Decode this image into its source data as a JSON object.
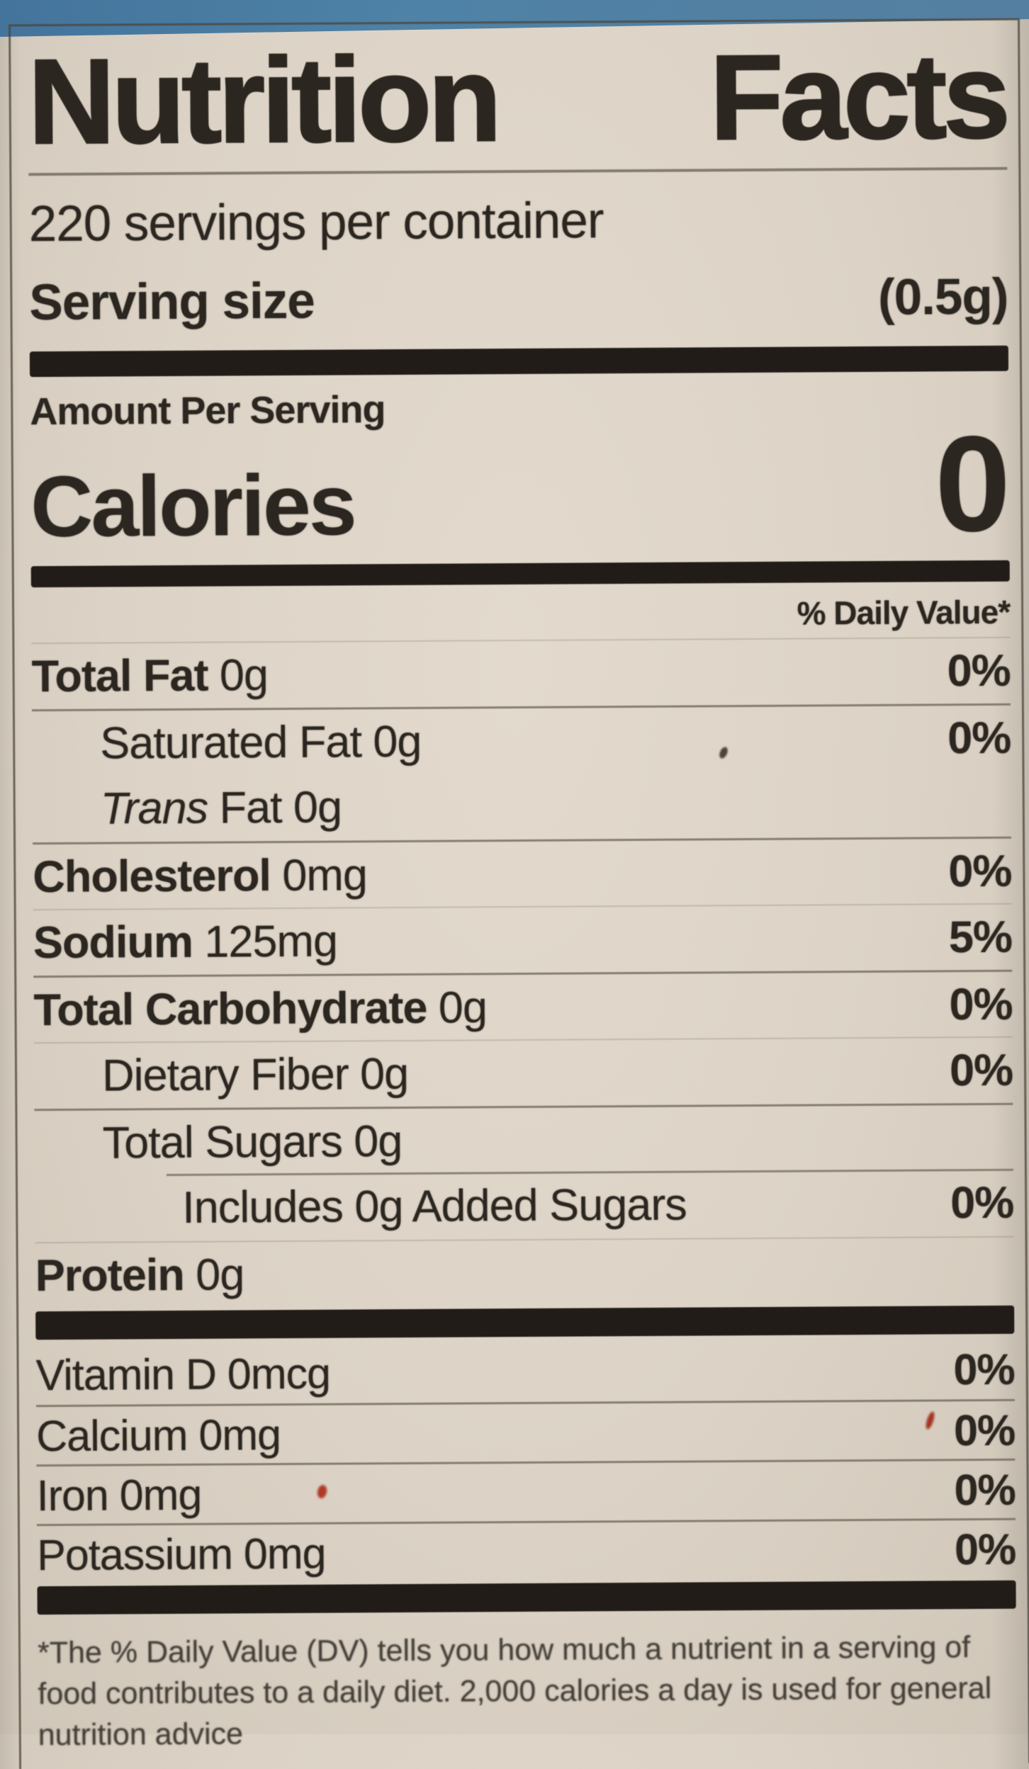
{
  "colors": {
    "background_cream": "#dcd3c6",
    "container_blue": "#4e82a6",
    "ink": "#2b2620",
    "bar": "#211c17",
    "hairline": "#776f62",
    "artifact_red": "#b03a26"
  },
  "label": {
    "title": "Nutrition Facts",
    "servings_per_container": "220 servings per container",
    "serving_size_label": "Serving size",
    "serving_size_value": "(0.5g)",
    "amount_per_serving": "Amount Per Serving",
    "calories_label": "Calories",
    "calories_value": "0",
    "daily_value_header": "% Daily Value*",
    "rows": [
      {
        "name": "Total Fat",
        "amount": "0g",
        "dv": "0%",
        "bold": true,
        "indent": 0,
        "divider": "faint"
      },
      {
        "name": "Saturated Fat",
        "amount": "0g",
        "dv": "0%",
        "bold": false,
        "indent": 1,
        "divider": "full"
      },
      {
        "italic": "Trans",
        "name": "Fat",
        "amount": "0g",
        "dv": "",
        "bold": false,
        "indent": 1,
        "divider": "none"
      },
      {
        "name": "Cholesterol",
        "amount": "0mg",
        "dv": "0%",
        "bold": true,
        "indent": 0,
        "divider": "full"
      },
      {
        "name": "Sodium",
        "amount": "125mg",
        "dv": "5%",
        "bold": true,
        "indent": 0,
        "divider": "faint"
      },
      {
        "name": "Total Carbohydrate",
        "amount": "0g",
        "dv": "0%",
        "bold": true,
        "indent": 0,
        "divider": "full"
      },
      {
        "name": "Dietary Fiber",
        "amount": "0g",
        "dv": "0%",
        "bold": false,
        "indent": 1,
        "divider": "faint"
      },
      {
        "name": "Total Sugars",
        "amount": "0g",
        "dv": "",
        "bold": false,
        "indent": 1,
        "divider": "full"
      },
      {
        "name": "Includes 0g Added Sugars",
        "amount": "",
        "dv": "0%",
        "bold": false,
        "indent": 2,
        "divider": "indent"
      },
      {
        "name": "Protein",
        "amount": "0g",
        "dv": "",
        "bold": true,
        "indent": 0,
        "divider": "faint"
      }
    ],
    "micronutrients": [
      {
        "name": "Vitamin D",
        "amount": "0mcg",
        "dv": "0%",
        "divider": "none"
      },
      {
        "name": "Calcium",
        "amount": "0mg",
        "dv": "0%",
        "divider": "full"
      },
      {
        "name": "Iron",
        "amount": "0mg",
        "dv": "0%",
        "divider": "full"
      },
      {
        "name": "Potassium",
        "amount": "0mg",
        "dv": "0%",
        "divider": "full"
      }
    ],
    "footnote": "*The % Daily Value (DV) tells you how much a nutrient in a serving of food contributes to a daily diet. 2,000 calories a day is used for general nutrition advice"
  }
}
